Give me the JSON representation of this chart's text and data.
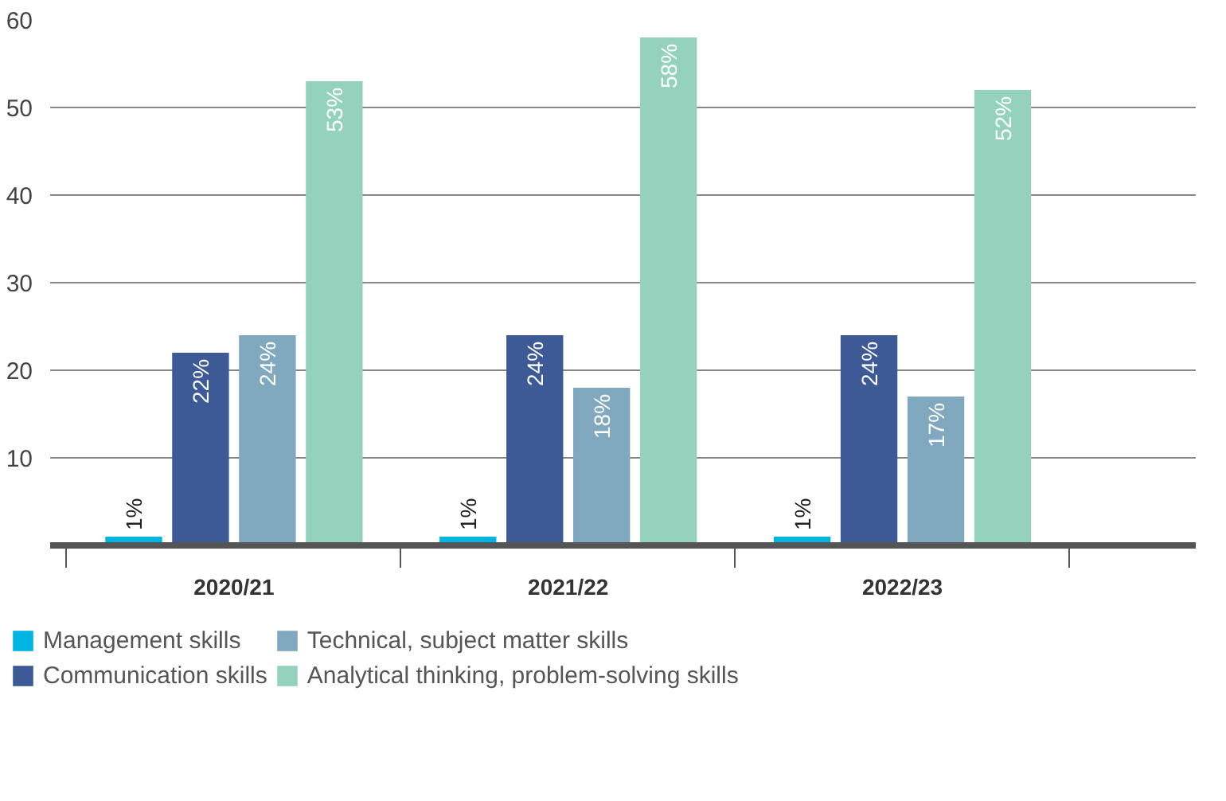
{
  "chart_data": {
    "type": "bar",
    "categories": [
      "2020/21",
      "2021/22",
      "2022/23"
    ],
    "series": [
      {
        "name": "Management skills",
        "color": "#00b5e2",
        "values": [
          1,
          1,
          1
        ],
        "value_labels": [
          "1%",
          "1%",
          "1%"
        ]
      },
      {
        "name": "Communication skills",
        "color": "#3d5a96",
        "values": [
          22,
          24,
          24
        ],
        "value_labels": [
          "22%",
          "24%",
          "24%"
        ]
      },
      {
        "name": "Technical, subject matter skills",
        "color": "#80a9bf",
        "values": [
          24,
          18,
          17
        ],
        "value_labels": [
          "24%",
          "18%",
          "17%"
        ]
      },
      {
        "name": "Analytical thinking, problem-solving skills",
        "color": "#94d2be",
        "values": [
          53,
          58,
          52
        ],
        "value_labels": [
          "53%",
          "58%",
          "52%"
        ]
      }
    ],
    "ylim": [
      0,
      60
    ],
    "yticks": [
      10,
      20,
      30,
      40,
      50,
      60
    ],
    "grid": "y",
    "legend": "bottom"
  }
}
